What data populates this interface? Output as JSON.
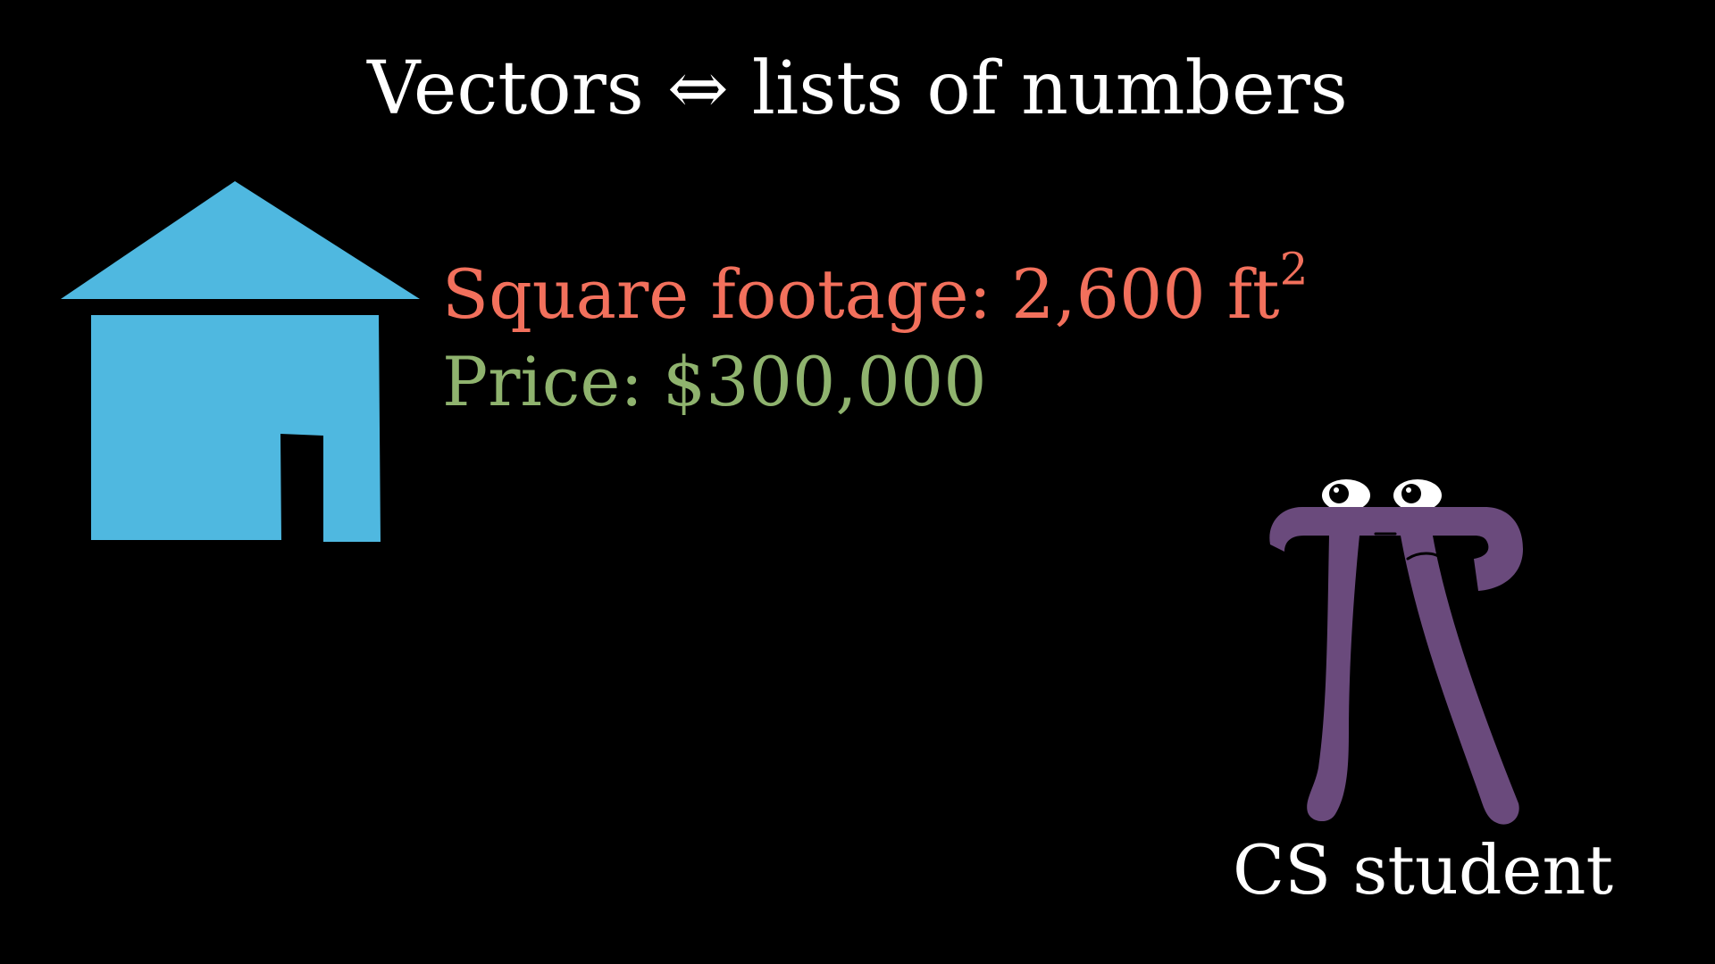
{
  "title": {
    "left": "Vectors",
    "arrow": "⇔",
    "right": "lists of numbers"
  },
  "house": {
    "icon": "house-icon",
    "color": "#4fb8e0"
  },
  "square_footage": {
    "label": "Square footage:",
    "value": "2,600 ft",
    "exponent": "2",
    "color": "#f2705c"
  },
  "price": {
    "label": "Price:",
    "value": "$300,000",
    "color": "#8fb36e"
  },
  "character": {
    "icon": "pi-creature-icon",
    "color": "#6a4a7c",
    "caption": "CS student"
  }
}
